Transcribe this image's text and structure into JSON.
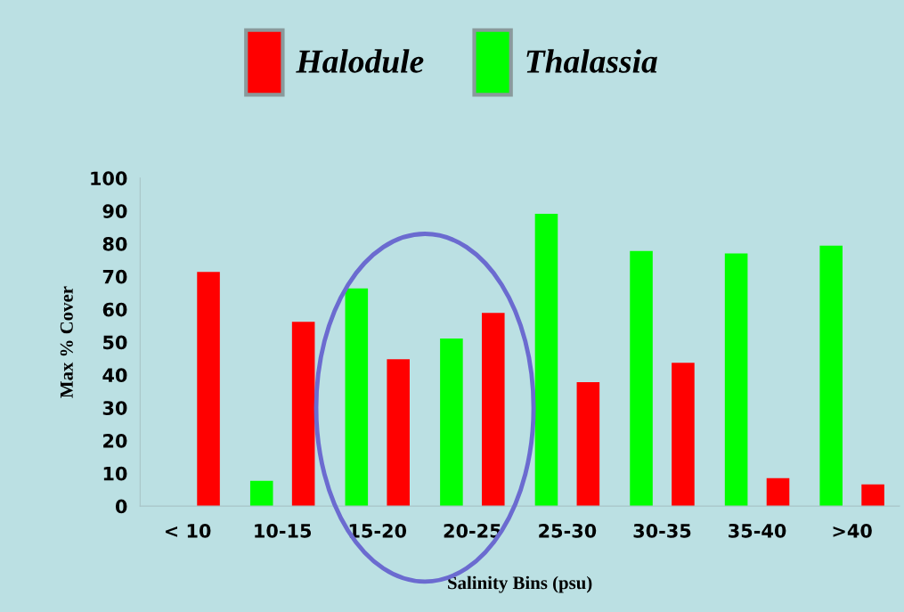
{
  "chart_data": {
    "type": "bar",
    "xlabel": "Salinity Bins (psu)",
    "ylabel": "Max % Cover",
    "categories": [
      "< 10",
      "10-15",
      "15-20",
      "20-25",
      "25-30",
      "30-35",
      "35-40",
      ">40"
    ],
    "series": [
      {
        "name": "Halodule",
        "color": "#ff0000",
        "values": [
          71.4,
          56.2,
          44.8,
          58.9,
          37.8,
          43.7,
          8.5,
          6.6
        ]
      },
      {
        "name": "Thalassia",
        "color": "#00ff00",
        "values": [
          0,
          7.7,
          66.4,
          51.1,
          89.1,
          77.8,
          77.0,
          79.4
        ]
      }
    ],
    "ylim": [
      0,
      100
    ],
    "yticks": [
      0,
      10,
      20,
      30,
      40,
      50,
      60,
      70,
      80,
      90,
      100
    ],
    "grid": false,
    "legend": "top"
  }
}
